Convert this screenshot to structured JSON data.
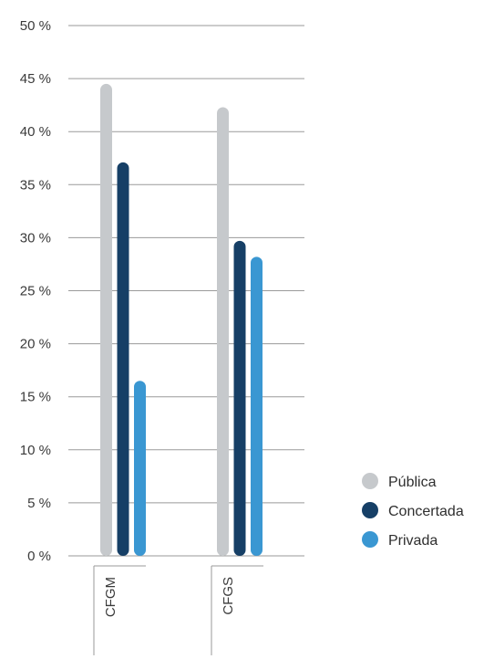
{
  "chart_data": {
    "type": "bar",
    "categories": [
      "CFGM",
      "CFGS"
    ],
    "series": [
      {
        "name": "Pública",
        "values": [
          44.5,
          42.3
        ],
        "color": "#c6c9cc"
      },
      {
        "name": "Concertada",
        "values": [
          37.1,
          29.7
        ],
        "color": "#163f66"
      },
      {
        "name": "Privada",
        "values": [
          16.5,
          28.2
        ],
        "color": "#3a97d2"
      }
    ],
    "ylim": [
      0,
      50
    ],
    "yticks": [
      0,
      5,
      10,
      15,
      20,
      25,
      30,
      35,
      40,
      45,
      50
    ],
    "ytick_labels": [
      "0 %",
      "5 %",
      "10 %",
      "15 %",
      "20 %",
      "25 %",
      "30 %",
      "35 %",
      "40 %",
      "45 %",
      "50 %"
    ],
    "grid": true,
    "legend": "right",
    "title": "",
    "xlabel": "",
    "ylabel": ""
  }
}
